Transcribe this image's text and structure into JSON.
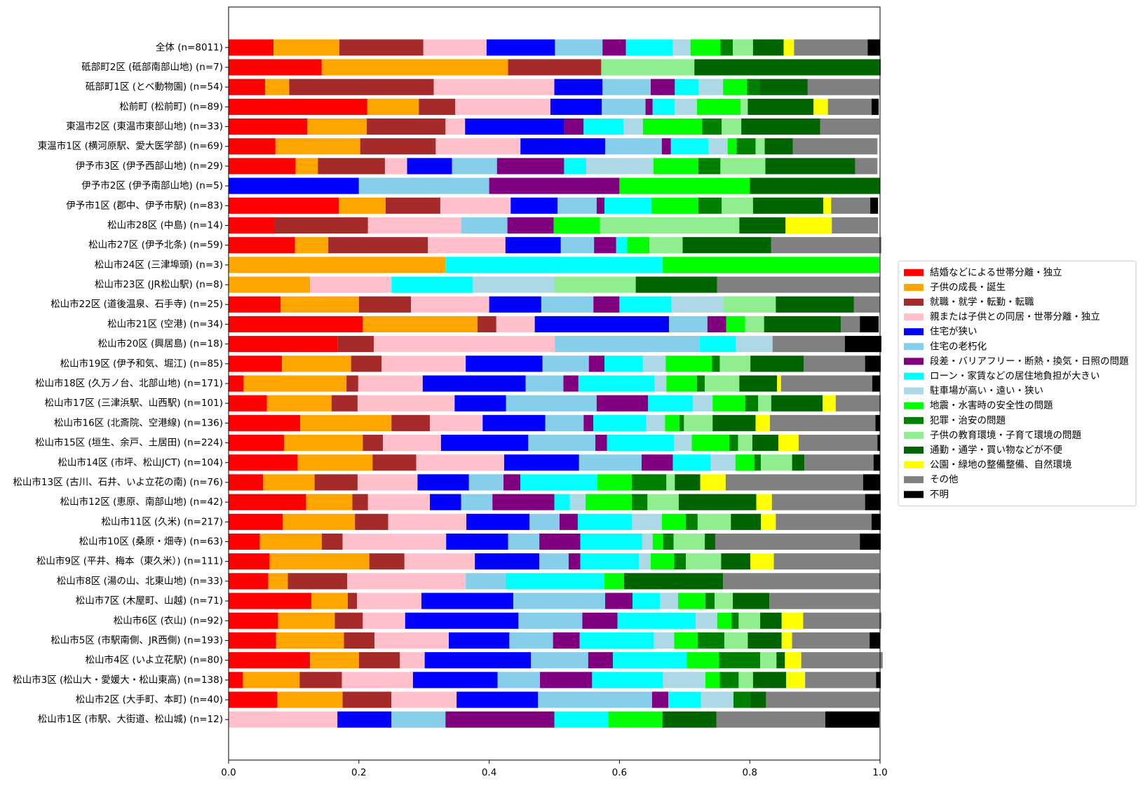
{
  "chart_data": {
    "type": "stacked-barh",
    "categories": [
      "全体 (n=8011)",
      "砥部町2区 (砥部南部山地) (n=7)",
      "砥部町1区 (とべ動物園) (n=54)",
      "松前町 (松前町) (n=89)",
      "東温市2区 (東温市東部山地) (n=33)",
      "東温市1区 (横河原駅、愛大医学部) (n=69)",
      "伊予市3区 (伊予西部山地) (n=29)",
      "伊予市2区 (伊予南部山地) (n=5)",
      "伊予市1区 (郡中、伊予市駅) (n=83)",
      "松山市28区 (中島) (n=14)",
      "松山市27区 (伊予北条) (n=59)",
      "松山市24区 (三津埠頭) (n=3)",
      "松山市23区 (JR松山駅) (n=8)",
      "松山市22区 (道後温泉、石手寺) (n=25)",
      "松山市21区 (空港) (n=34)",
      "松山市20区 (興居島) (n=18)",
      "松山市19区 (伊予和気、堀江) (n=85)",
      "松山市18区 (久万ノ台、北部山地) (n=171)",
      "松山市17区 (三津浜駅、山西駅) (n=101)",
      "松山市16区 (北斎院、空港線) (n=136)",
      "松山市15区 (垣生、余戸、土居田) (n=224)",
      "松山市14区 (市坪、松山JCT) (n=104)",
      "松山市13区 (古川、石井、いよ立花の南) (n=76)",
      "松山市12区 (恵原、南部山地) (n=42)",
      "松山市11区 (久米) (n=217)",
      "松山市10区 (桑原・畑寺) (n=63)",
      "松山市9区 (平井、梅本（東久米）) (n=111)",
      "松山市8区 (湯の山、北東山地) (n=33)",
      "松山市7区 (木屋町、山越) (n=71)",
      "松山市6区 (衣山) (n=92)",
      "松山市5区 (市駅南側、JR西側) (n=193)",
      "松山市4区 (いよ立花駅) (n=80)",
      "松山市3区 (松山大・愛媛大・松山東高) (n=138)",
      "松山市2区 (大手町、本町) (n=40)",
      "松山市1区 (市駅、大街道、松山城) (n=12)"
    ],
    "series": [
      {
        "name": "結婚などによる世帯分離・独立",
        "color": "#ff0000",
        "values": [
          0.069,
          0.143,
          0.056,
          0.213,
          0.121,
          0.072,
          0.103,
          0,
          0.169,
          0.071,
          0.102,
          0,
          0,
          0.08,
          0.206,
          0.167,
          0.082,
          0.023,
          0.059,
          0.11,
          0.085,
          0.106,
          0.053,
          0.119,
          0.083,
          0.048,
          0.063,
          0.061,
          0.127,
          0.076,
          0.073,
          0.125,
          0.022,
          0.075,
          0
        ]
      },
      {
        "name": "子供の成長・誕生",
        "color": "#ffa500",
        "values": [
          0.101,
          0.286,
          0.037,
          0.079,
          0.091,
          0.13,
          0.034,
          0,
          0.072,
          0,
          0.051,
          0.333,
          0.125,
          0.12,
          0.176,
          0,
          0.106,
          0.158,
          0.099,
          0.14,
          0.121,
          0.115,
          0.079,
          0.071,
          0.111,
          0.095,
          0.153,
          0.03,
          0.056,
          0.087,
          0.104,
          0.075,
          0.087,
          0.1,
          0
        ]
      },
      {
        "name": "就職・就学・転勤・転職",
        "color": "#a52a2a",
        "values": [
          0.129,
          0.143,
          0.222,
          0.056,
          0.121,
          0.116,
          0.103,
          0,
          0.084,
          0.143,
          0.153,
          0,
          0,
          0.08,
          0.029,
          0.056,
          0.047,
          0.018,
          0.04,
          0.059,
          0.031,
          0.067,
          0.066,
          0.024,
          0.051,
          0.032,
          0.054,
          0.091,
          0.014,
          0.043,
          0.047,
          0.063,
          0.065,
          0.075,
          0
        ]
      },
      {
        "name": "親または子供との同居・世帯分離・独立",
        "color": "#ffc0cb",
        "values": [
          0.097,
          0,
          0.185,
          0.146,
          0.03,
          0.13,
          0.034,
          0,
          0.108,
          0.143,
          0.119,
          0,
          0.125,
          0.12,
          0.059,
          0.278,
          0.129,
          0.099,
          0.149,
          0.081,
          0.089,
          0.135,
          0.092,
          0.095,
          0.12,
          0.159,
          0.108,
          0.182,
          0.099,
          0.065,
          0.114,
          0.038,
          0.109,
          0.1,
          0.167
        ]
      },
      {
        "name": "住宅が狭い",
        "color": "#0000ff",
        "values": [
          0.105,
          0,
          0.074,
          0.079,
          0.152,
          0.13,
          0.069,
          0.2,
          0.072,
          0,
          0.085,
          0,
          0,
          0.08,
          0.206,
          0,
          0.118,
          0.158,
          0.079,
          0.096,
          0.134,
          0.115,
          0.079,
          0.048,
          0.097,
          0.095,
          0.099,
          0,
          0.141,
          0.174,
          0.093,
          0.163,
          0.13,
          0.125,
          0.083
        ]
      },
      {
        "name": "住宅の老朽化",
        "color": "#87ceeb",
        "values": [
          0.073,
          0,
          0.074,
          0.067,
          0,
          0.087,
          0.069,
          0.2,
          0.06,
          0.071,
          0.051,
          0,
          0,
          0.08,
          0.059,
          0.222,
          0.071,
          0.058,
          0.139,
          0.059,
          0.103,
          0.096,
          0.053,
          0.048,
          0.046,
          0.048,
          0.045,
          0.061,
          0.141,
          0.098,
          0.067,
          0.088,
          0.065,
          0.175,
          0.083
        ]
      },
      {
        "name": "段差・バリアフリー・断熱・換気・日照の問題",
        "color": "#800080",
        "values": [
          0.036,
          0,
          0.037,
          0.011,
          0.03,
          0.014,
          0.103,
          0.2,
          0.012,
          0.071,
          0.034,
          0,
          0,
          0.04,
          0.029,
          0,
          0.024,
          0.023,
          0.079,
          0.015,
          0.018,
          0.048,
          0.026,
          0.095,
          0.028,
          0.063,
          0.018,
          0,
          0.042,
          0.054,
          0.041,
          0.038,
          0.08,
          0.025,
          0.167
        ]
      },
      {
        "name": "ローン・家賃などの居住地負担が大きい",
        "color": "#00ffff",
        "values": [
          0.072,
          0,
          0.037,
          0.034,
          0.061,
          0.058,
          0.034,
          0,
          0.072,
          0,
          0.017,
          0.333,
          0.125,
          0.08,
          0,
          0.056,
          0.059,
          0.117,
          0.069,
          0.081,
          0.103,
          0.058,
          0.118,
          0.024,
          0.083,
          0.095,
          0.09,
          0.152,
          0.042,
          0.12,
          0.114,
          0.113,
          0.109,
          0.05,
          0.083
        ]
      },
      {
        "name": "駐車場が高い・遠い・狭い",
        "color": "#add8e6",
        "values": [
          0.027,
          0,
          0.037,
          0.034,
          0.03,
          0.029,
          0.103,
          0,
          0,
          0,
          0,
          0,
          0.125,
          0.08,
          0,
          0.056,
          0.035,
          0.018,
          0.03,
          0.029,
          0.027,
          0.038,
          0,
          0.024,
          0.046,
          0.016,
          0.018,
          0,
          0.028,
          0.033,
          0.031,
          0,
          0.065,
          0.05,
          0
        ]
      },
      {
        "name": "地震・水害時の安全性の問題",
        "color": "#00ff00",
        "values": [
          0.046,
          0,
          0.037,
          0.067,
          0.091,
          0.014,
          0.069,
          0.2,
          0.072,
          0.071,
          0.034,
          0.333,
          0,
          0,
          0.029,
          0,
          0.071,
          0.047,
          0.05,
          0.022,
          0.058,
          0.029,
          0.053,
          0.071,
          0.037,
          0.016,
          0.036,
          0.03,
          0.042,
          0.022,
          0.036,
          0.05,
          0.022,
          0,
          0.083
        ]
      },
      {
        "name": "犯罪・治安の問題",
        "color": "#008000",
        "values": [
          0.019,
          0,
          0.019,
          0,
          0.03,
          0.029,
          0.034,
          0,
          0.036,
          0,
          0,
          0,
          0,
          0,
          0,
          0,
          0.012,
          0.012,
          0.02,
          0.007,
          0.013,
          0.01,
          0.053,
          0.024,
          0.018,
          0.016,
          0.018,
          0,
          0.014,
          0.011,
          0.041,
          0.063,
          0.029,
          0.025,
          0
        ]
      },
      {
        "name": "子供の教育環境・子育て環境の問題",
        "color": "#90ee90",
        "values": [
          0.031,
          0.143,
          0,
          0.011,
          0.03,
          0.014,
          0.069,
          0,
          0.048,
          0.214,
          0.051,
          0,
          0.125,
          0.08,
          0.029,
          0,
          0.047,
          0.053,
          0.02,
          0.044,
          0.022,
          0.048,
          0.013,
          0.048,
          0.051,
          0.048,
          0.054,
          0,
          0.028,
          0.033,
          0.036,
          0.025,
          0.022,
          0,
          0
        ]
      },
      {
        "name": "通勤・通学・買い物などが不便",
        "color": "#006400",
        "values": [
          0.047,
          0.286,
          0.074,
          0.101,
          0.121,
          0.043,
          0.138,
          0.2,
          0.108,
          0.071,
          0.136,
          0,
          0.125,
          0.12,
          0.118,
          0,
          0.082,
          0.058,
          0.079,
          0.066,
          0.04,
          0.019,
          0.039,
          0.119,
          0.046,
          0.016,
          0.045,
          0.152,
          0.056,
          0.033,
          0.052,
          0.013,
          0.051,
          0.025,
          0.083
        ]
      },
      {
        "name": "公園・緑地の整備整備、自然環境",
        "color": "#ffff00",
        "values": [
          0.016,
          0,
          0,
          0.022,
          0,
          0,
          0,
          0,
          0.012,
          0.071,
          0,
          0,
          0,
          0,
          0,
          0,
          0,
          0.006,
          0.02,
          0.022,
          0.031,
          0,
          0.039,
          0.024,
          0.023,
          0,
          0.036,
          0,
          0,
          0.033,
          0.016,
          0.025,
          0.029,
          0,
          0
        ]
      },
      {
        "name": "その他",
        "color": "#808080",
        "values": [
          0.113,
          0,
          0.111,
          0.067,
          0.091,
          0.13,
          0.034,
          0,
          0.06,
          0.071,
          0.169,
          0,
          0.25,
          0.04,
          0.029,
          0.111,
          0.094,
          0.14,
          0.069,
          0.162,
          0.121,
          0.106,
          0.211,
          0.143,
          0.147,
          0.222,
          0.162,
          0.242,
          0.169,
          0.12,
          0.119,
          0.125,
          0.109,
          0.175,
          0.167
        ]
      },
      {
        "name": "不明",
        "color": "#000000",
        "values": [
          0.019,
          0,
          0,
          0.011,
          0,
          0,
          0,
          0,
          0.012,
          0,
          0,
          0,
          0,
          0,
          0.029,
          0.056,
          0.024,
          0.012,
          0,
          0.007,
          0.004,
          0.01,
          0.026,
          0.024,
          0.014,
          0.032,
          0,
          0,
          0,
          0,
          0.016,
          0,
          0.007,
          0,
          0.083
        ]
      }
    ],
    "xlim": [
      0,
      1
    ],
    "xticks": [
      {
        "value": 0,
        "label": "0.0"
      },
      0.2,
      0.4,
      0.6,
      0.8,
      {
        "value": 1,
        "label": "1.0"
      }
    ],
    "grid": false,
    "legend": "right"
  }
}
